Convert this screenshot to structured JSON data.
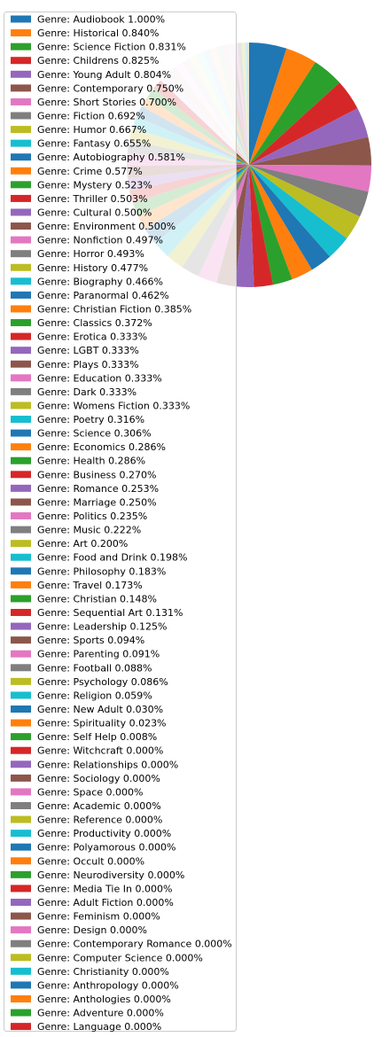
{
  "chart_data": {
    "type": "pie",
    "title": "",
    "legend_position": "upper-left, overlapping pie",
    "palette": [
      "#1f77b4",
      "#ff7f0e",
      "#2ca02c",
      "#d62728",
      "#9467bd",
      "#8c564b",
      "#e377c2",
      "#7f7f7f",
      "#bcbd22",
      "#17becf"
    ],
    "faded_alpha": 0.2,
    "start_angle_deg": 90,
    "direction": "clockwise",
    "slices": [
      {
        "label": "Genre: Audiobook 1.000%",
        "value": 1.0,
        "faded": false
      },
      {
        "label": "Genre: Historical 0.840%",
        "value": 0.84,
        "faded": false
      },
      {
        "label": "Genre: Science Fiction 0.831%",
        "value": 0.831,
        "faded": false
      },
      {
        "label": "Genre: Childrens 0.825%",
        "value": 0.825,
        "faded": false
      },
      {
        "label": "Genre: Young Adult 0.804%",
        "value": 0.804,
        "faded": false
      },
      {
        "label": "Genre: Contemporary 0.750%",
        "value": 0.75,
        "faded": false
      },
      {
        "label": "Genre: Short Stories 0.700%",
        "value": 0.7,
        "faded": false
      },
      {
        "label": "Genre: Fiction 0.692%",
        "value": 0.692,
        "faded": false
      },
      {
        "label": "Genre: Humor 0.667%",
        "value": 0.667,
        "faded": false
      },
      {
        "label": "Genre: Fantasy 0.655%",
        "value": 0.655,
        "faded": false
      },
      {
        "label": "Genre: Autobiography 0.581%",
        "value": 0.581,
        "faded": false
      },
      {
        "label": "Genre: Crime 0.577%",
        "value": 0.577,
        "faded": false
      },
      {
        "label": "Genre: Mystery 0.523%",
        "value": 0.523,
        "faded": false
      },
      {
        "label": "Genre: Thriller 0.503%",
        "value": 0.503,
        "faded": false
      },
      {
        "label": "Genre: Cultural 0.500%",
        "value": 0.5,
        "faded": false
      },
      {
        "label": "Genre: Environment 0.500%",
        "value": 0.5,
        "faded": false
      },
      {
        "label": "Genre: Nonfiction 0.497%",
        "value": 0.497,
        "faded": false
      },
      {
        "label": "Genre: Horror 0.493%",
        "value": 0.493,
        "faded": false
      },
      {
        "label": "Genre: History 0.477%",
        "value": 0.477,
        "faded": false
      },
      {
        "label": "Genre: Biography 0.466%",
        "value": 0.466,
        "faded": false
      },
      {
        "label": "Genre: Paranormal 0.462%",
        "value": 0.462,
        "faded": false
      },
      {
        "label": "Genre: Christian Fiction 0.385%",
        "value": 0.385,
        "faded": false
      },
      {
        "label": "Genre: Classics 0.372%",
        "value": 0.372,
        "faded": false
      },
      {
        "label": "Genre: Erotica 0.333%",
        "value": 0.333,
        "faded": false
      },
      {
        "label": "Genre: LGBT 0.333%",
        "value": 0.333,
        "faded": false
      },
      {
        "label": "Genre: Plays 0.333%",
        "value": 0.333,
        "faded": false
      },
      {
        "label": "Genre: Education 0.333%",
        "value": 0.333,
        "faded": false
      },
      {
        "label": "Genre: Dark 0.333%",
        "value": 0.333,
        "faded": false
      },
      {
        "label": "Genre: Womens Fiction 0.333%",
        "value": 0.333,
        "faded": false
      },
      {
        "label": "Genre: Poetry 0.316%",
        "value": 0.316,
        "faded": false
      },
      {
        "label": "Genre: Science 0.306%",
        "value": 0.306,
        "faded": false
      },
      {
        "label": "Genre: Economics 0.286%",
        "value": 0.286,
        "faded": false
      },
      {
        "label": "Genre: Health 0.286%",
        "value": 0.286,
        "faded": false
      },
      {
        "label": "Genre: Business 0.270%",
        "value": 0.27,
        "faded": false
      },
      {
        "label": "Genre: Romance 0.253%",
        "value": 0.253,
        "faded": true
      },
      {
        "label": "Genre: Marriage 0.250%",
        "value": 0.25,
        "faded": true
      },
      {
        "label": "Genre: Politics 0.235%",
        "value": 0.235,
        "faded": true
      },
      {
        "label": "Genre: Music 0.222%",
        "value": 0.222,
        "faded": true
      },
      {
        "label": "Genre: Art 0.200%",
        "value": 0.2,
        "faded": true
      },
      {
        "label": "Genre: Food and Drink 0.198%",
        "value": 0.198,
        "faded": true
      },
      {
        "label": "Genre: Philosophy 0.183%",
        "value": 0.183,
        "faded": true
      },
      {
        "label": "Genre: Travel 0.173%",
        "value": 0.173,
        "faded": true
      },
      {
        "label": "Genre: Christian 0.148%",
        "value": 0.148,
        "faded": true
      },
      {
        "label": "Genre: Sequential Art 0.131%",
        "value": 0.131,
        "faded": true
      },
      {
        "label": "Genre: Leadership 0.125%",
        "value": 0.125,
        "faded": true
      },
      {
        "label": "Genre: Sports 0.094%",
        "value": 0.094,
        "faded": true
      },
      {
        "label": "Genre: Parenting 0.091%",
        "value": 0.091,
        "faded": true
      },
      {
        "label": "Genre: Football 0.088%",
        "value": 0.088,
        "faded": true
      },
      {
        "label": "Genre: Psychology 0.086%",
        "value": 0.086,
        "faded": true
      },
      {
        "label": "Genre: Religion 0.059%",
        "value": 0.059,
        "faded": true
      },
      {
        "label": "Genre: New Adult 0.030%",
        "value": 0.03,
        "faded": true
      },
      {
        "label": "Genre: Spirituality 0.023%",
        "value": 0.023,
        "faded": true
      },
      {
        "label": "Genre: Self Help 0.008%",
        "value": 0.008,
        "faded": true
      },
      {
        "label": "Genre: Witchcraft 0.000%",
        "value": 0.0,
        "faded": true
      },
      {
        "label": "Genre: Relationships 0.000%",
        "value": 0.0,
        "faded": true
      },
      {
        "label": "Genre: Sociology 0.000%",
        "value": 0.0,
        "faded": true
      },
      {
        "label": "Genre: Space 0.000%",
        "value": 0.0,
        "faded": true
      },
      {
        "label": "Genre: Academic 0.000%",
        "value": 0.0,
        "faded": true
      },
      {
        "label": "Genre: Reference 0.000%",
        "value": 0.0,
        "faded": true
      },
      {
        "label": "Genre: Productivity 0.000%",
        "value": 0.0,
        "faded": true
      },
      {
        "label": "Genre: Polyamorous 0.000%",
        "value": 0.0,
        "faded": true
      },
      {
        "label": "Genre: Occult 0.000%",
        "value": 0.0,
        "faded": true
      },
      {
        "label": "Genre: Neurodiversity 0.000%",
        "value": 0.0,
        "faded": true
      },
      {
        "label": "Genre: Media Tie In 0.000%",
        "value": 0.0,
        "faded": true
      },
      {
        "label": "Genre: Adult Fiction 0.000%",
        "value": 0.0,
        "faded": true
      },
      {
        "label": "Genre: Feminism 0.000%",
        "value": 0.0,
        "faded": true
      },
      {
        "label": "Genre: Design 0.000%",
        "value": 0.0,
        "faded": true
      },
      {
        "label": "Genre: Contemporary Romance 0.000%",
        "value": 0.0,
        "faded": true
      },
      {
        "label": "Genre: Computer Science 0.000%",
        "value": 0.0,
        "faded": true
      },
      {
        "label": "Genre: Christianity 0.000%",
        "value": 0.0,
        "faded": true
      },
      {
        "label": "Genre: Anthropology 0.000%",
        "value": 0.0,
        "faded": true
      },
      {
        "label": "Genre: Anthologies 0.000%",
        "value": 0.0,
        "faded": true
      },
      {
        "label": "Genre: Adventure 0.000%",
        "value": 0.0,
        "faded": true
      },
      {
        "label": "Genre: Language 0.000%",
        "value": 0.0,
        "faded": true
      }
    ]
  }
}
